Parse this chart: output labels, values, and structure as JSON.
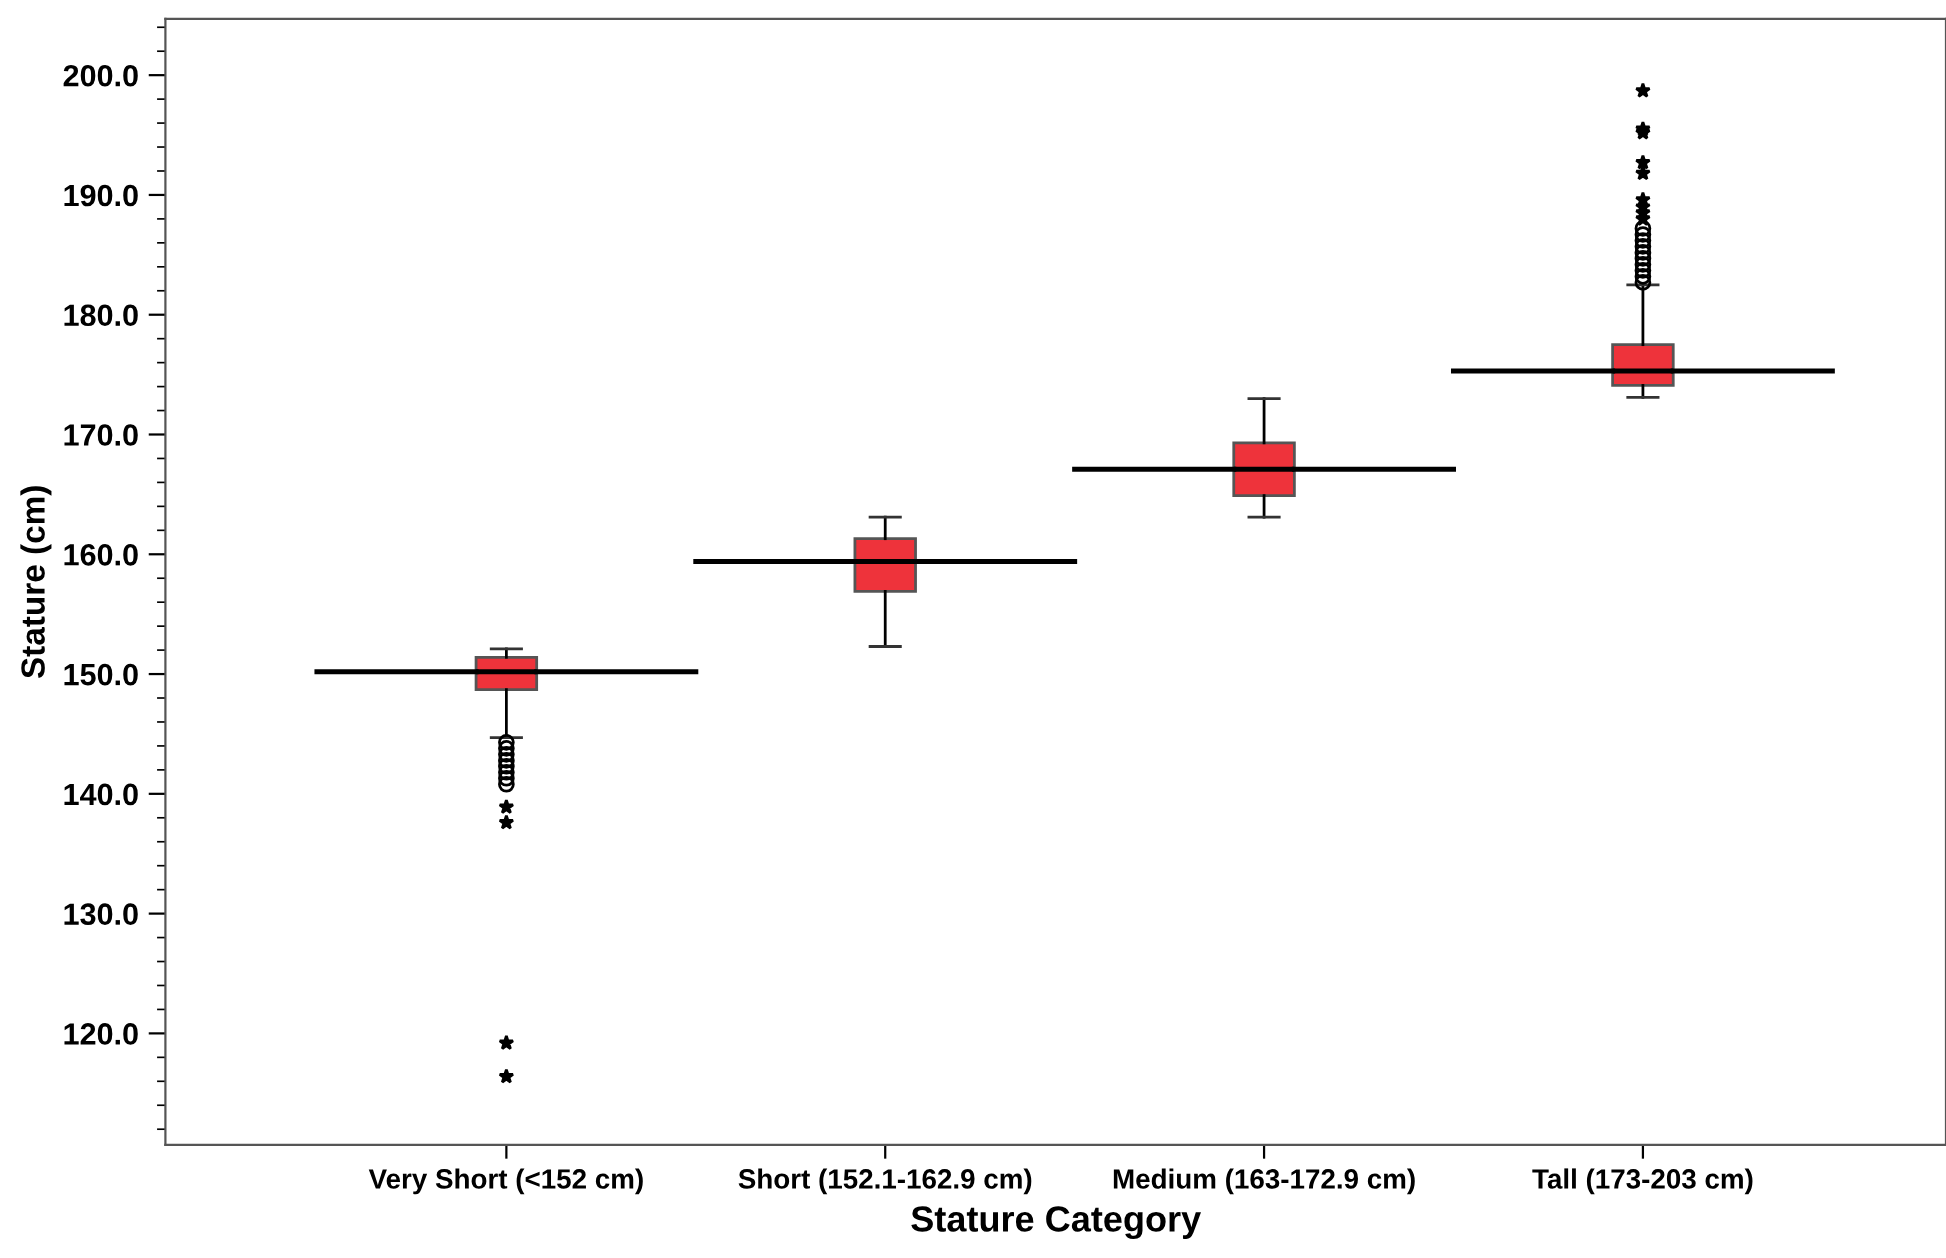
{
  "chart_data": {
    "type": "box",
    "xlabel": "Stature Category",
    "ylabel": "Stature (cm)",
    "categories": [
      "Very Short (<152 cm)",
      "Short (152.1-162.9 cm)",
      "Medium (163-172.9 cm)",
      "Tall (173-203 cm)"
    ],
    "color": "#ee333b",
    "boxes": [
      {
        "low": 144.7,
        "q1": 148.7,
        "median": 150.2,
        "q3": 151.4,
        "high": 152.1,
        "outliers": [
          144.3,
          143.8,
          143.3,
          142.8,
          142.3,
          141.8,
          141.3,
          140.8,
          138.9,
          137.6,
          119.2,
          116.4
        ]
      },
      {
        "low": 152.3,
        "q1": 156.9,
        "median": 159.4,
        "q3": 161.3,
        "high": 163.1
      },
      {
        "low": 163.1,
        "q1": 164.9,
        "median": 167.1,
        "q3": 169.3,
        "high": 173.0
      },
      {
        "low": 173.1,
        "q1": 174.1,
        "median": 175.3,
        "q3": 177.5,
        "high": 182.5,
        "outliers": [
          182.7,
          183.2,
          183.7,
          184.2,
          184.7,
          185.2,
          185.7,
          186.2,
          186.7,
          187.2,
          188.0,
          188.5,
          189.0,
          189.6,
          191.8,
          192.7,
          195.2,
          195.5,
          198.7
        ]
      }
    ],
    "ylim": [
      110.7,
      204.7
    ],
    "yticks": [
      {
        "value": 120,
        "label": "120.0"
      },
      {
        "value": 130,
        "label": "130.0"
      },
      {
        "value": 140,
        "label": "140.0"
      },
      {
        "value": 150,
        "label": "150.0"
      },
      {
        "value": 160,
        "label": "160.0"
      },
      {
        "value": 170,
        "label": "170.0"
      },
      {
        "value": 180,
        "label": "180.0"
      },
      {
        "value": 190,
        "label": "190.0"
      },
      {
        "value": 200,
        "label": "200.0"
      }
    ],
    "grid": false
  }
}
